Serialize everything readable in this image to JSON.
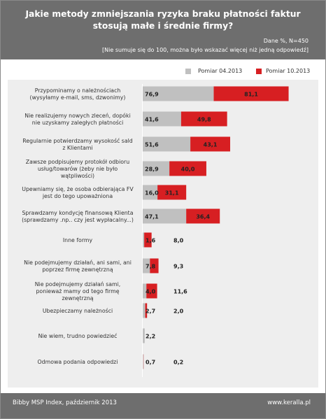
{
  "title_line1": "Jakie metody zmniejszania ryzyka braku płatności faktur",
  "title_line2": "stosują małe i średnie firmy?",
  "note_line1": "Dane %, N=450",
  "note_line2": "[Nie sumuje się do 100, można było wskazać więcej niż jedną odpowiedź]",
  "footer_source": "Bibby MSP Index, październik 2013",
  "footer_url": "www.keralla.pl",
  "colors": {
    "series1": "#c0c0c0",
    "series2": "#d71f22",
    "header": "#6e6e6e",
    "panel": "#eeeeee"
  },
  "chart_data": {
    "type": "bar",
    "orientation": "horizontal",
    "stacked": true,
    "legend_position": "top-right",
    "categories": [
      "Przypominamy o należnościach (wysyłamy e-mail, sms, dzwonimy)",
      "Nie realizujemy nowych zleceń, dopóki nie uzyskamy zaległych płatności",
      "Regularnie potwierdzamy wysokość sald z Klientami",
      "Zawsze podpisujemy protokół odbioru usług/towarów (żeby nie było wątpliwości)",
      "Upewniamy się, że osoba odbierająca FV jest do tego upoważniona",
      "Sprawdzamy kondycję finansową Klienta (sprawdzamy np. czy jest wypłacalny...)",
      "Inne formy",
      "Nie podejmujemy działań, ani sami, ani poprzez firmę zewnętrzną",
      "Nie podejmujemy działań sami, ponieważ mamy od tego firmę zewnętrzną",
      "Ubezpieczamy należności",
      "Nie wiem, trudno powiedzieć",
      "Odmowa podania odpowiedzi"
    ],
    "category_lines": [
      [
        "Przypominamy o należnościach",
        "(wysyłamy e-mail, sms, dzwonimy)"
      ],
      [
        "Nie realizujemy nowych zleceń, dopóki",
        "nie uzyskamy zaległych płatności"
      ],
      [
        "Regularnie potwierdzamy wysokość sald",
        "z Klientami"
      ],
      [
        "Zawsze podpisujemy protokół odbioru",
        "usług/towarów (żeby nie było",
        "wątpliwości)"
      ],
      [
        "Upewniamy się, że osoba odbierająca FV",
        "jest do tego upoważniona"
      ],
      [
        "Sprawdzamy kondycję finansową Klienta",
        "(sprawdzamy .np.. czy jest wypłacalny...)"
      ],
      [
        "Inne formy"
      ],
      [
        "Nie podejmujemy działań, ani sami, ani",
        "poprzez firmę zewnętrzną"
      ],
      [
        "Nie podejmujemy działań sami,",
        "ponieważ mamy od tego firmę",
        "zewnętrzną"
      ],
      [
        "Ubezpieczamy należności"
      ],
      [
        "Nie wiem, trudno powiedzieć"
      ],
      [
        "Odmowa podania odpowiedzi"
      ]
    ],
    "series": [
      {
        "name": "Pomiar 04.2013",
        "values": [
          76.9,
          41.6,
          51.6,
          28.9,
          16.0,
          47.1,
          1.6,
          7.8,
          4.0,
          2.7,
          2.2,
          0.7
        ],
        "labels": [
          "76,9",
          "41,6",
          "51,6",
          "28,9",
          "16,0",
          "47,1",
          "1,6",
          "7,8",
          "4,0",
          "2,7",
          "2,2",
          "0,7"
        ]
      },
      {
        "name": "Pomiar 10.2013",
        "values": [
          81.1,
          49.8,
          43.1,
          40.0,
          31.1,
          36.4,
          8.0,
          9.3,
          11.6,
          2.0,
          null,
          0.2
        ],
        "labels": [
          "81,1",
          "49,8",
          "43,1",
          "40,0",
          "31,1",
          "36,4",
          "8,0",
          "9,3",
          "11,6",
          "2,0",
          "",
          "0,2"
        ]
      }
    ]
  }
}
